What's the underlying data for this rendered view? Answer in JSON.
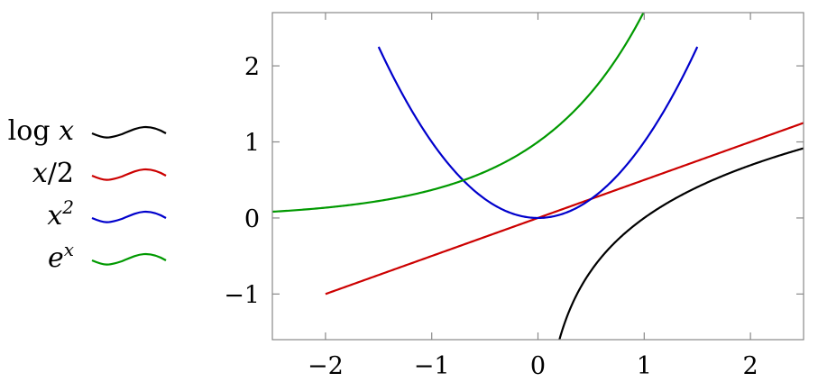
{
  "chart_data": {
    "type": "line",
    "title": "",
    "xlabel": "",
    "ylabel": "",
    "xlim": [
      -2.5,
      2.5
    ],
    "ylim": [
      -1.6,
      2.7
    ],
    "grid": false,
    "legend_placement": "left",
    "x_ticks": [
      -2,
      -1,
      0,
      1,
      2
    ],
    "y_ticks": [
      -1,
      0,
      1,
      2
    ],
    "x_tick_labels": [
      "−2",
      "−1",
      "0",
      "1",
      "2"
    ],
    "y_tick_labels": [
      "−1",
      "0",
      "1",
      "2"
    ],
    "series": [
      {
        "name": "log x",
        "function": "log(x)",
        "domain": [
          0.2,
          2.5
        ],
        "color": "#000000"
      },
      {
        "name": "x/2",
        "function": "x/2",
        "domain": [
          -2,
          2.5
        ],
        "color": "#cc0000"
      },
      {
        "name": "x^2",
        "function": "x^2",
        "domain": [
          -1.5,
          1.5
        ],
        "color": "#0000cc"
      },
      {
        "name": "e^x",
        "function": "exp(x)",
        "domain": [
          -2.5,
          1.0
        ],
        "color": "#009900"
      }
    ]
  }
}
